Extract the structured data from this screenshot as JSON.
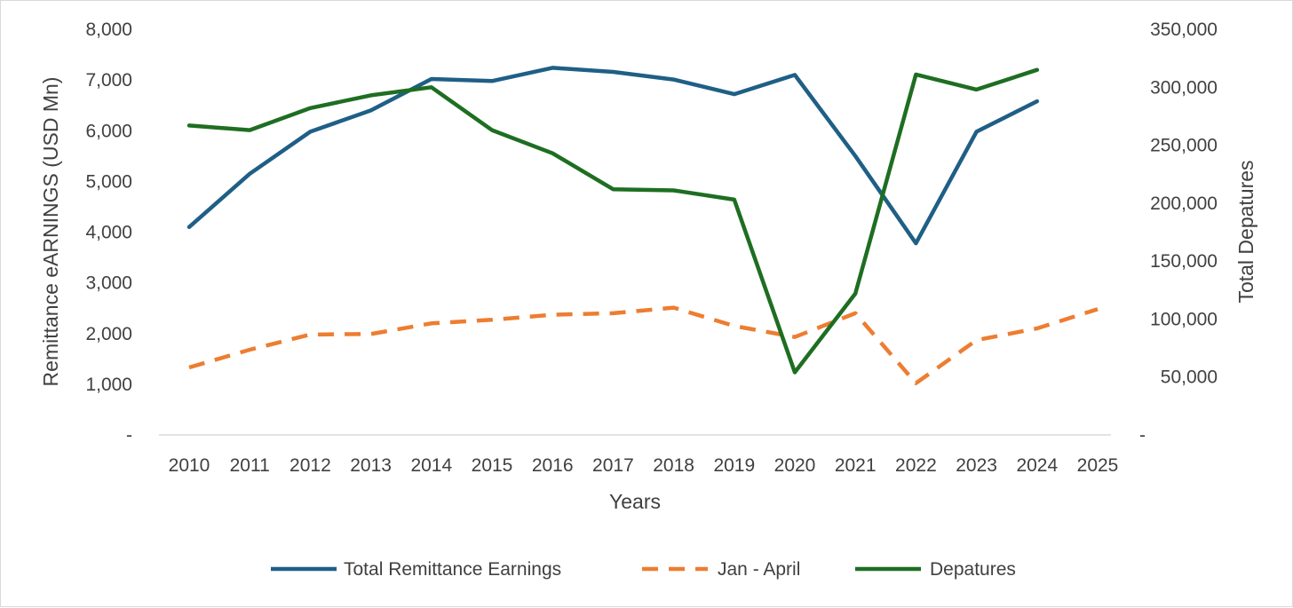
{
  "chart_data": {
    "type": "line",
    "title": "",
    "xlabel": "Years",
    "ylabel_left": "Remittance eARNINGS (USD Mn)",
    "ylabel_right": "Total Depatures",
    "categories": [
      "2010",
      "2011",
      "2012",
      "2013",
      "2014",
      "2015",
      "2016",
      "2017",
      "2018",
      "2019",
      "2020",
      "2021",
      "2022",
      "2023",
      "2024",
      "2025"
    ],
    "y_left": {
      "min": 0,
      "max": 8000,
      "step": 1000,
      "tick_labels": [
        "-",
        "1,000",
        "2,000",
        "3,000",
        "4,000",
        "5,000",
        "6,000",
        "7,000",
        "8,000"
      ]
    },
    "y_right": {
      "min": 0,
      "max": 350000,
      "step": 50000,
      "tick_labels": [
        "-",
        "50,000",
        "100,000",
        "150,000",
        "200,000",
        "250,000",
        "300,000",
        "350,000"
      ]
    },
    "grid": false,
    "legend_position": "bottom",
    "series": [
      {
        "name": "Total Remittance Earnings",
        "axis": "left",
        "color": "#1f5f86",
        "dash": "solid",
        "values": [
          4100,
          5150,
          5980,
          6400,
          7020,
          6980,
          7240,
          7160,
          7010,
          6720,
          7100,
          5500,
          3780,
          5980,
          6580,
          null
        ]
      },
      {
        "name": "Jan - April",
        "axis": "left",
        "color": "#ed7d31",
        "dash": "dashed",
        "values": [
          1330,
          1680,
          1980,
          1990,
          2200,
          2270,
          2370,
          2400,
          2510,
          2150,
          1930,
          2400,
          1020,
          1870,
          2100,
          2480
        ]
      },
      {
        "name": "Depatures",
        "axis": "right",
        "color": "#1e6e22",
        "dash": "solid",
        "values": [
          267000,
          263000,
          282000,
          293000,
          300000,
          263000,
          243000,
          212000,
          211000,
          203000,
          54000,
          122000,
          311000,
          298000,
          315000,
          null
        ]
      }
    ]
  }
}
